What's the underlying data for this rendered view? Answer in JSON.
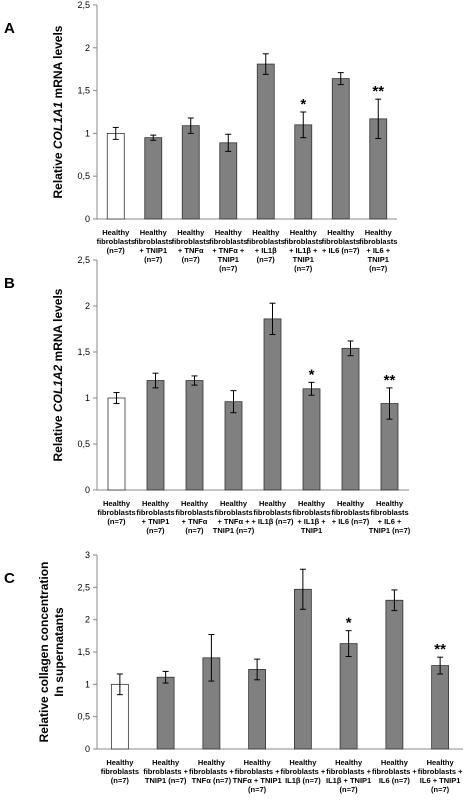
{
  "chart_data": [
    {
      "type": "bar",
      "panel": "A",
      "ylabel": [
        "Relative ",
        "COL1A1",
        " mRNA levels"
      ],
      "ylabel_style": [
        "normal",
        "italic",
        "normal"
      ],
      "categories": [
        [
          "Healthy",
          "fibroblasts",
          "(n=7)"
        ],
        [
          "Healthy",
          "fibroblasts",
          "+ TNIP1",
          "(n=7)"
        ],
        [
          "Healthy",
          "fibroblasts",
          "+ TNFα",
          "(n=7)"
        ],
        [
          "Healthy",
          "fibroblasts",
          "+ TNFα +",
          "TNIP1",
          "(n=7)"
        ],
        [
          "Healthy",
          "fibroblasts",
          "+ IL1β",
          "(n=7)"
        ],
        [
          "Healthy",
          "fibroblasts",
          "+ IL1β +",
          "TNIP1",
          "(n=7)"
        ],
        [
          "Healthy",
          "fibroblasts",
          "+ IL6 (n=7)"
        ],
        [
          "Healthy",
          "fibroblasts",
          "+ IL6 +",
          "TNIP1",
          "(n=7)"
        ]
      ],
      "values": [
        1.0,
        0.95,
        1.09,
        0.89,
        1.81,
        1.1,
        1.64,
        1.17
      ],
      "errors": [
        0.07,
        0.03,
        0.09,
        0.1,
        0.12,
        0.15,
        0.07,
        0.23
      ],
      "significance": [
        null,
        null,
        null,
        null,
        null,
        "*",
        null,
        "**"
      ],
      "colors": [
        "#ffffff",
        "#808080",
        "#808080",
        "#808080",
        "#808080",
        "#808080",
        "#808080",
        "#808080"
      ],
      "ylim": [
        0,
        2.5
      ],
      "yticks": [
        0,
        {
          "value": 0.5,
          "label": "0,5"
        },
        1,
        {
          "value": 1.5,
          "label": "1,5"
        },
        2,
        {
          "value": 2.5,
          "label": "2,5"
        }
      ]
    },
    {
      "type": "bar",
      "panel": "B",
      "ylabel": [
        "Relative ",
        "COL1A2",
        " mRNA levels"
      ],
      "ylabel_style": [
        "normal",
        "italic",
        "normal"
      ],
      "categories": [
        [
          "Healthy",
          "fibroblasts",
          "(n=7)"
        ],
        [
          "Healthy",
          "fibroblasts",
          "+ TNIP1",
          "(n=7)"
        ],
        [
          "Healthy",
          "fibroblasts",
          "+ TNFα",
          "(n=7)"
        ],
        [
          "Healthy",
          "fibroblasts",
          "+ TNFα +",
          "TNIP1 (n=7)"
        ],
        [
          "Healthy",
          "fibroblasts",
          "+ IL1β (n=7)"
        ],
        [
          "Healthy",
          "fibroblasts",
          "+ IL1β +",
          "TNIP1"
        ],
        [
          "Healthy",
          "fibroblasts",
          "+ IL6 (n=7)"
        ],
        [
          "Healthy",
          "fibroblasts",
          "+ IL6 +",
          "TNIP1 (n=7)"
        ]
      ],
      "values": [
        1.0,
        1.19,
        1.19,
        0.96,
        1.86,
        1.1,
        1.54,
        0.94
      ],
      "errors": [
        0.06,
        0.08,
        0.05,
        0.12,
        0.17,
        0.07,
        0.08,
        0.17
      ],
      "significance": [
        null,
        null,
        null,
        null,
        null,
        "*",
        null,
        "**"
      ],
      "colors": [
        "#ffffff",
        "#808080",
        "#808080",
        "#808080",
        "#808080",
        "#808080",
        "#808080",
        "#808080"
      ],
      "ylim": [
        0,
        2.5
      ],
      "yticks": [
        0,
        {
          "value": 0.5,
          "label": "0,5"
        },
        1,
        {
          "value": 1.5,
          "label": "1,5"
        },
        2,
        {
          "value": 2.5,
          "label": "2,5"
        }
      ]
    },
    {
      "type": "bar",
      "panel": "C",
      "ylabel_lines": [
        "Relative collagen concentration",
        "In supernatants"
      ],
      "categories": [
        [
          "Healthy",
          "fibroblasts",
          "(n=7)"
        ],
        [
          "Healthy",
          "fibroblasts +",
          "TNIP1 (n=7)"
        ],
        [
          "Healthy",
          "fibroblasts +",
          "TNFα (n=7)"
        ],
        [
          "Healthy",
          "fibroblasts +",
          "TNFα + TNIP1",
          "(n=7)"
        ],
        [
          "Healthy",
          "fibroblasts +",
          "IL1β (n=7)"
        ],
        [
          "Healthy",
          "fibroblasts +",
          "IL1β + TNIP1",
          "(n=7)"
        ],
        [
          "Healthy",
          "fibroblasts +",
          "IL6 (n=7)"
        ],
        [
          "Healthy",
          "fibroblasts +",
          "IL6 + TNIP1",
          "(n=7)"
        ]
      ],
      "values": [
        1.0,
        1.11,
        1.41,
        1.23,
        2.47,
        1.63,
        2.3,
        1.29
      ],
      "errors": [
        0.16,
        0.09,
        0.36,
        0.16,
        0.31,
        0.2,
        0.16,
        0.13
      ],
      "significance": [
        null,
        null,
        null,
        null,
        null,
        "*",
        null,
        "**"
      ],
      "colors": [
        "#ffffff",
        "#808080",
        "#808080",
        "#808080",
        "#808080",
        "#808080",
        "#808080",
        "#808080"
      ],
      "ylim": [
        0,
        3
      ],
      "yticks": [
        0,
        {
          "value": 0.5,
          "label": "0,5"
        },
        1,
        {
          "value": 1.5,
          "label": "1,5"
        },
        2,
        {
          "value": 2.5,
          "label": "2,5"
        },
        3
      ]
    }
  ]
}
